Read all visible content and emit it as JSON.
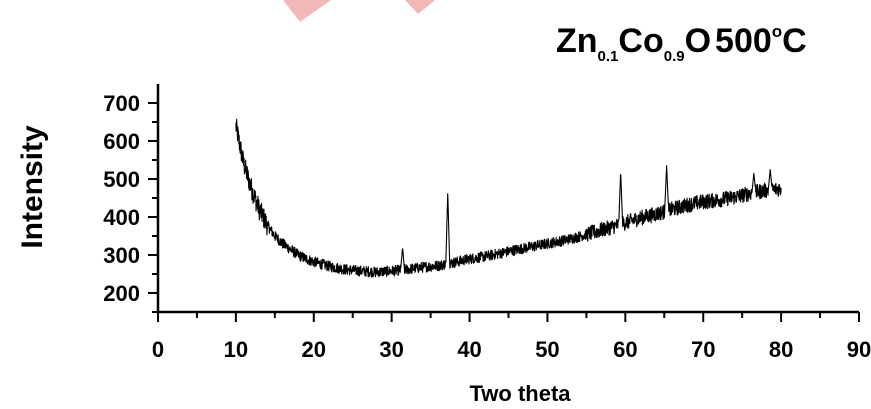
{
  "chart_data": {
    "type": "line",
    "title_parts": {
      "element1": "Zn",
      "sub1": "0.1",
      "element2": "Co",
      "sub2": "0.9",
      "element3": "O",
      "temperature": "500",
      "degree": "o",
      "unit": "C"
    },
    "xlabel": "Two theta",
    "ylabel": "Intensity",
    "xlim": [
      0,
      90
    ],
    "ylim": [
      150,
      750
    ],
    "xticks": [
      0,
      10,
      20,
      30,
      40,
      50,
      60,
      70,
      80,
      90
    ],
    "yticks": [
      200,
      300,
      400,
      500,
      600,
      700
    ],
    "grid": false,
    "legend": "none",
    "series": [
      {
        "x_range": [
          10,
          80
        ],
        "baseline_points": [
          [
            10,
            640
          ],
          [
            11,
            540
          ],
          [
            12,
            475
          ],
          [
            13,
            420
          ],
          [
            14,
            380
          ],
          [
            15,
            350
          ],
          [
            16,
            330
          ],
          [
            17,
            315
          ],
          [
            18,
            300
          ],
          [
            19,
            290
          ],
          [
            20,
            282
          ],
          [
            22,
            270
          ],
          [
            24,
            262
          ],
          [
            26,
            258
          ],
          [
            28,
            255
          ],
          [
            30,
            258
          ],
          [
            32,
            262
          ],
          [
            34,
            268
          ],
          [
            36,
            272
          ],
          [
            38,
            280
          ],
          [
            40,
            290
          ],
          [
            42,
            296
          ],
          [
            44,
            305
          ],
          [
            46,
            314
          ],
          [
            48,
            322
          ],
          [
            50,
            330
          ],
          [
            52,
            338
          ],
          [
            54,
            348
          ],
          [
            56,
            360
          ],
          [
            58,
            372
          ],
          [
            60,
            385
          ],
          [
            62,
            398
          ],
          [
            64,
            408
          ],
          [
            66,
            420
          ],
          [
            68,
            432
          ],
          [
            70,
            440
          ],
          [
            72,
            445
          ],
          [
            74,
            452
          ],
          [
            76,
            462
          ],
          [
            78,
            470
          ],
          [
            80,
            475
          ]
        ],
        "peaks": [
          [
            31.4,
            320
          ],
          [
            37.2,
            465
          ],
          [
            59.4,
            520
          ],
          [
            65.3,
            535
          ],
          [
            76.5,
            515
          ],
          [
            78.6,
            525
          ]
        ]
      }
    ],
    "colors": {
      "line": "#000000",
      "decoration": "#f2b8b8"
    }
  }
}
